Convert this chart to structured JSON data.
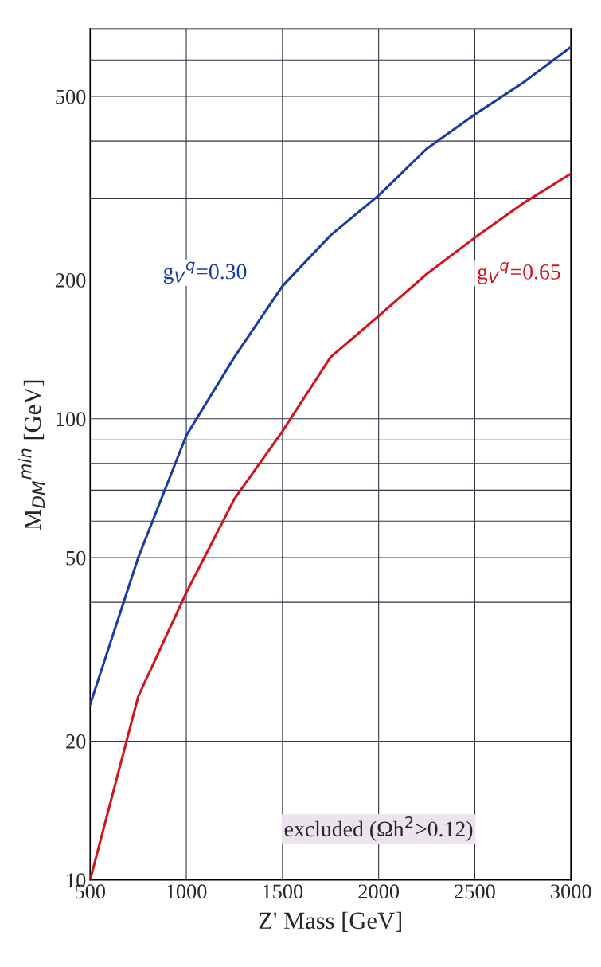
{
  "chart_data": {
    "type": "line",
    "xlabel": "Z' Mass [GeV]",
    "ylabel": "M$_{DM}$$^{min}$ [GeV]",
    "x": [
      500,
      750,
      1000,
      1250,
      1500,
      1750,
      2000,
      2250,
      2500,
      2750,
      3000
    ],
    "series": [
      {
        "name": "g$_{V}$$^{q}$=0.30",
        "color": "#1c3aa6",
        "values": [
          24,
          50,
          92,
          136,
          194,
          250,
          305,
          385,
          457,
          535,
          640
        ]
      },
      {
        "name": "g$_{V}$$^{q}$=0.65",
        "color": "#d4141c",
        "values": [
          10,
          25,
          42,
          67,
          94,
          136,
          167,
          206,
          247,
          293,
          340
        ]
      }
    ],
    "annotations": [
      "excluded (Ωh$^{2}$>0.12)"
    ],
    "log": "y",
    "xlim": [
      500,
      3000
    ],
    "xticks": [
      500,
      1000,
      1500,
      2000,
      2500,
      3000
    ],
    "ylim": [
      10,
      700
    ],
    "yticks": [
      10,
      20,
      {
        "value": 30,
        "label": null
      },
      {
        "value": 40,
        "label": null
      },
      50,
      {
        "value": 60,
        "label": null
      },
      {
        "value": 70,
        "label": null
      },
      {
        "value": 80,
        "label": null
      },
      {
        "value": 90,
        "label": null
      },
      100,
      200,
      {
        "value": 300,
        "label": null
      },
      {
        "value": 400,
        "label": null
      },
      500,
      {
        "value": 600,
        "label": null
      },
      {
        "value": 700,
        "label": null
      }
    ],
    "grid": true,
    "legend": false
  }
}
